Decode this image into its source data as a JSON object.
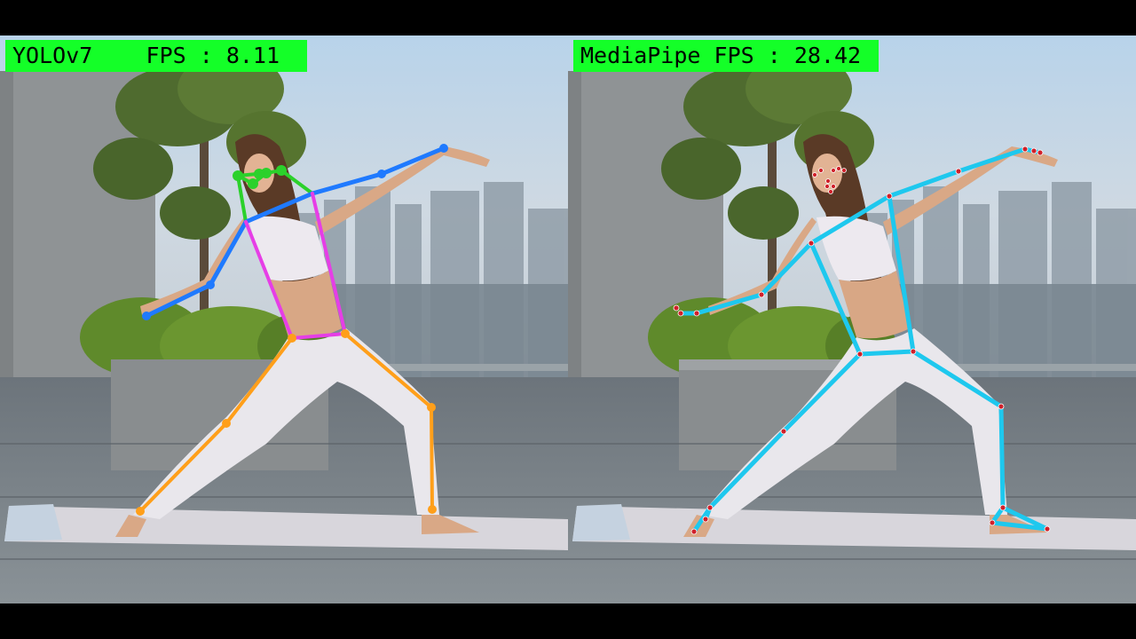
{
  "panels": {
    "left": {
      "model_name": "YOLOv7",
      "fps_text": "YOLOv7    FPS : 8.11",
      "skeleton_colors": {
        "head": "#2bd12b",
        "arms": "#1f7aff",
        "torso": "#e63ee6",
        "legs": "#ff9f1a"
      }
    },
    "right": {
      "model_name": "MediaPipe",
      "fps_text": "MediaPipe FPS : 28.42",
      "skeleton_colors": {
        "limbs": "#1ec8ee",
        "joints": "#d0202a"
      }
    }
  },
  "label_color": "#14ff28"
}
